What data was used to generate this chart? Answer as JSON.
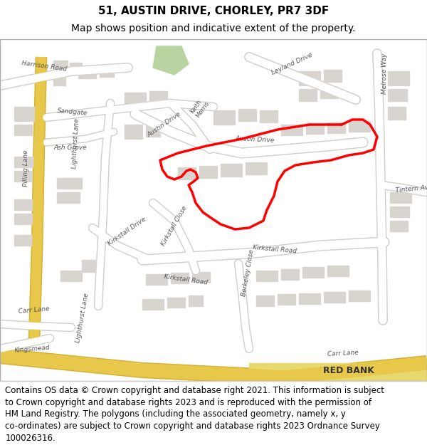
{
  "title_line1": "51, AUSTIN DRIVE, CHORLEY, PR7 3DF",
  "title_line2": "Map shows position and indicative extent of the property.",
  "footer_lines": [
    "Contains OS data © Crown copyright and database right 2021. This information is subject",
    "to Crown copyright and database rights 2023 and is reproduced with the permission of",
    "HM Land Registry. The polygons (including the associated geometry, namely x, y",
    "co-ordinates) are subject to Crown copyright and database rights 2023 Ordnance Survey",
    "100026316."
  ],
  "title_fontsize": 11,
  "subtitle_fontsize": 10,
  "footer_fontsize": 8.5,
  "map_bg": "#f2efe9",
  "title_bg": "#ffffff",
  "footer_bg": "#ffffff",
  "border_color": "#cccccc",
  "red_polygon_color": "#ff0000",
  "red_linewidth": 2.5,
  "fig_width": 6.0,
  "fig_height": 6.25,
  "dpi": 100
}
